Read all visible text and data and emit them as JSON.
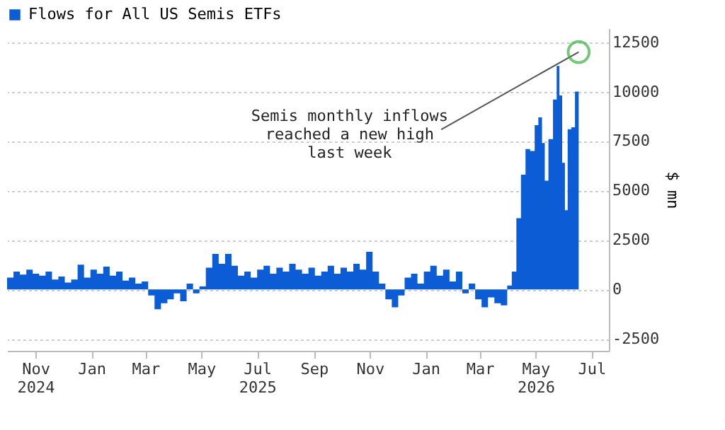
{
  "chart_data": {
    "type": "area",
    "legend": "top left",
    "grid": "y",
    "ylabel": "$ mn",
    "xlim": [
      "2024-10-01",
      "2026-07-20"
    ],
    "ylim": [
      -3100,
      13200
    ],
    "xticks": [
      {
        "value": "2024-11-01",
        "label": "Nov\n2024"
      },
      {
        "value": "2025-01-01",
        "label": "Jan"
      },
      {
        "value": "2025-03-01",
        "label": "Mar"
      },
      {
        "value": "2025-05-01",
        "label": "May"
      },
      {
        "value": "2025-07-01",
        "label": "Jul\n2025"
      },
      {
        "value": "2025-09-01",
        "label": "Sep"
      },
      {
        "value": "2025-11-01",
        "label": "Nov"
      },
      {
        "value": "2026-01-01",
        "label": "Jan"
      },
      {
        "value": "2026-03-01",
        "label": "Mar"
      },
      {
        "value": "2026-05-01",
        "label": "May\n2026"
      },
      {
        "value": "2026-07-01",
        "label": "Jul"
      }
    ],
    "yticks": [
      -2500,
      0,
      2500,
      5000,
      7500,
      10000,
      12500
    ],
    "annotations": [
      {
        "text": "Semis monthly inflows\nreached a new high\nlast week",
        "x": "2026-06-17",
        "y": 12000
      }
    ],
    "x": [
      "2024-10-01",
      "2024-10-08",
      "2024-10-15",
      "2024-10-22",
      "2024-10-29",
      "2024-11-05",
      "2024-11-12",
      "2024-11-19",
      "2024-11-26",
      "2024-12-03",
      "2024-12-10",
      "2024-12-17",
      "2024-12-24",
      "2024-12-31",
      "2025-01-07",
      "2025-01-14",
      "2025-01-21",
      "2025-01-28",
      "2025-02-04",
      "2025-02-11",
      "2025-02-18",
      "2025-02-25",
      "2025-03-04",
      "2025-03-11",
      "2025-03-18",
      "2025-03-25",
      "2025-04-01",
      "2025-04-08",
      "2025-04-15",
      "2025-04-22",
      "2025-04-29",
      "2025-05-06",
      "2025-05-13",
      "2025-05-20",
      "2025-05-27",
      "2025-06-03",
      "2025-06-10",
      "2025-06-17",
      "2025-06-24",
      "2025-07-01",
      "2025-07-08",
      "2025-07-15",
      "2025-07-22",
      "2025-07-29",
      "2025-08-05",
      "2025-08-12",
      "2025-08-19",
      "2025-08-26",
      "2025-09-02",
      "2025-09-09",
      "2025-09-16",
      "2025-09-23",
      "2025-09-30",
      "2025-10-07",
      "2025-10-14",
      "2025-10-21",
      "2025-10-28",
      "2025-11-04",
      "2025-11-11",
      "2025-11-18",
      "2025-11-25",
      "2025-12-02",
      "2025-12-09",
      "2025-12-16",
      "2025-12-23",
      "2025-12-30",
      "2026-01-06",
      "2026-01-13",
      "2026-01-20",
      "2026-01-27",
      "2026-02-03",
      "2026-02-10",
      "2026-02-17",
      "2026-02-24",
      "2026-03-03",
      "2026-03-10",
      "2026-03-17",
      "2026-03-24",
      "2026-03-31",
      "2026-04-05",
      "2026-04-10",
      "2026-04-15",
      "2026-04-20",
      "2026-04-25",
      "2026-04-30",
      "2026-05-04",
      "2026-05-08",
      "2026-05-11",
      "2026-05-15",
      "2026-05-20",
      "2026-05-24",
      "2026-05-27",
      "2026-05-30",
      "2026-06-02",
      "2026-06-05",
      "2026-06-09",
      "2026-06-13",
      "2026-06-17"
    ],
    "series": [
      {
        "name": "Flows for All US Semis ETFs",
        "color": "#0b5cd5",
        "values": [
          600,
          900,
          750,
          1000,
          800,
          700,
          900,
          500,
          650,
          350,
          500,
          1250,
          600,
          1000,
          800,
          1150,
          700,
          900,
          450,
          600,
          300,
          400,
          -300,
          -1000,
          -700,
          -500,
          -200,
          -600,
          300,
          -200,
          150,
          1100,
          1800,
          1300,
          1800,
          1200,
          700,
          900,
          600,
          1000,
          1200,
          800,
          1100,
          900,
          1300,
          1000,
          800,
          1100,
          700,
          900,
          1200,
          800,
          1100,
          900,
          1300,
          1000,
          1900,
          900,
          300,
          -500,
          -900,
          -300,
          600,
          800,
          300,
          900,
          1200,
          700,
          1000,
          400,
          900,
          -200,
          300,
          -500,
          -900,
          -400,
          -700,
          -800,
          200,
          900,
          3600,
          5800,
          7100,
          7000,
          8300,
          8700,
          7400,
          5500,
          7600,
          9600,
          11300,
          9800,
          6400,
          4000,
          8100,
          8200,
          10000,
          12000
        ]
      }
    ]
  }
}
